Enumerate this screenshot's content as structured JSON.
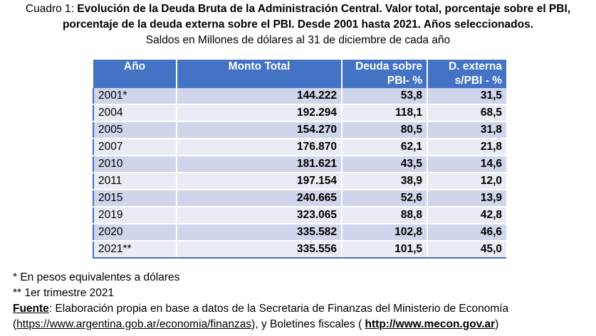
{
  "caption": {
    "label": "Cuadro 1: ",
    "title": "Evolución de la Deuda Bruta de la Administración Central. Valor total, porcentaje sobre el PBI, porcentaje de la deuda externa sobre el PBI. Desde 2001 hasta 2021. Años seleccionados.",
    "subtitle": "Saldos en Millones de dólares al 31 de diciembre de cada año"
  },
  "table": {
    "headers": {
      "year": "Año",
      "total": "Monto Total",
      "debt_ratio_1": "Deuda sobre",
      "debt_ratio_2": "PBI- %",
      "external_1": "D. externa",
      "external_2": "s/PBI - %"
    },
    "rows": [
      {
        "year": "2001*",
        "total": "144.222",
        "ratio": "53,8",
        "external": "31,5"
      },
      {
        "year": "2004",
        "total": "192.294",
        "ratio": "118,1",
        "external": "68,5"
      },
      {
        "year": "2005",
        "total": "154.270",
        "ratio": "80,5",
        "external": "31,8"
      },
      {
        "year": "2007",
        "total": "176.870",
        "ratio": "62,1",
        "external": "21,8"
      },
      {
        "year": "2010",
        "total": "181.621",
        "ratio": "43,5",
        "external": "14,6"
      },
      {
        "year": "2011",
        "total": "197.154",
        "ratio": "38,9",
        "external": "12,0"
      },
      {
        "year": "2015",
        "total": "240.665",
        "ratio": "52,6",
        "external": "13,9"
      },
      {
        "year": "2019",
        "total": "323.065",
        "ratio": "88,8",
        "external": "42,8"
      },
      {
        "year": "2020",
        "total": "335.582",
        "ratio": "102,8",
        "external": "46,6"
      },
      {
        "year": "2021**",
        "total": "335.556",
        "ratio": "101,5",
        "external": "45,0"
      }
    ]
  },
  "notes": {
    "note1": "* En pesos equivalentes a dólares",
    "note2": "** 1er trimestre 2021",
    "source_label": "Fuente",
    "source_text": ": Elaboración propia en base a datos de la Secretaria de Finanzas del Ministerio de Economía",
    "open_paren": "(",
    "link1": "https://www.argentina.gob.ar/economia/finanzas",
    "mid_text": "), y  Boletines fiscales ( ",
    "link2": "http://www.mecon.gov.ar",
    "close_paren": ")"
  },
  "colors": {
    "header_bg": "#4472c4",
    "row_odd": "#cfd5ea",
    "row_even": "#e9ebf5"
  }
}
